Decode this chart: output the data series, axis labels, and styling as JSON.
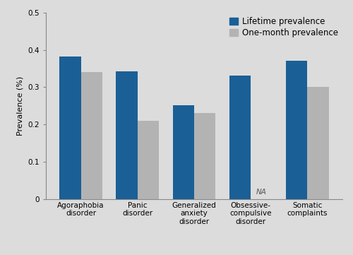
{
  "categories": [
    "Agoraphobia\ndisorder",
    "Panic\ndisorder",
    "Generalized\nanxiety\ndisorder",
    "Obsessive-\ncompulsive\ndisorder",
    "Somatic\ncomplaints"
  ],
  "lifetime_prevalence": [
    0.383,
    0.343,
    0.252,
    0.332,
    0.372
  ],
  "onemonth_prevalence": [
    0.34,
    0.21,
    0.23,
    null,
    0.3
  ],
  "na_label": "NA",
  "na_category_index": 3,
  "lifetime_color": "#1a5f96",
  "onemonth_color": "#b3b3b3",
  "ylabel": "Prevalence (%)",
  "ylim": [
    0,
    0.5
  ],
  "yticks": [
    0,
    0.1,
    0.2,
    0.3,
    0.4,
    0.5
  ],
  "legend_lifetime": "Lifetime prevalence",
  "legend_onemonth": "One-month prevalence",
  "background_color": "#dcdcdc",
  "bar_width": 0.38,
  "axis_fontsize": 8,
  "tick_fontsize": 7.5,
  "legend_fontsize": 8.5
}
